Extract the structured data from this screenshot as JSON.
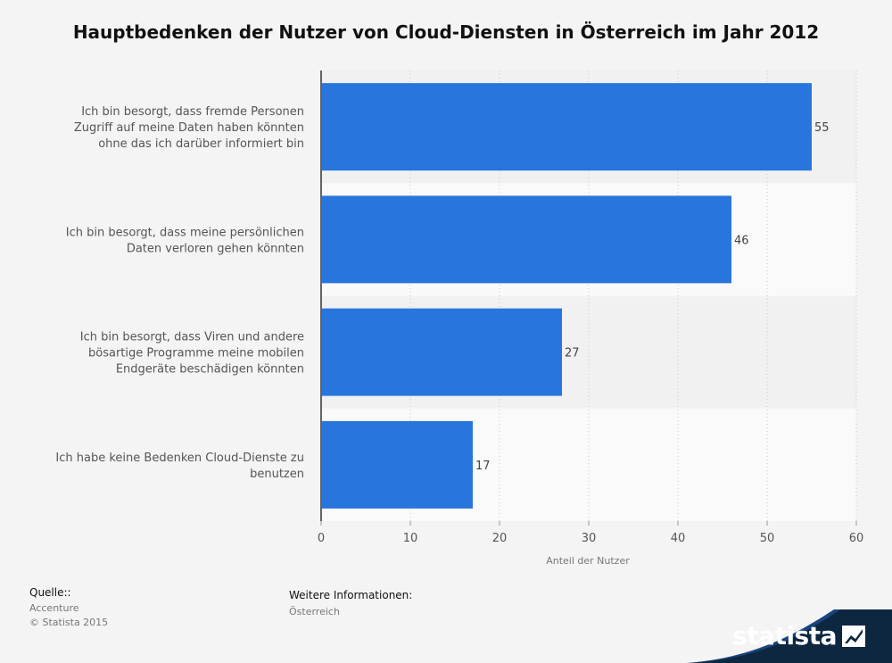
{
  "chart_data": {
    "type": "bar",
    "orientation": "horizontal",
    "title": "Hauptbedenken der Nutzer von Cloud-Diensten in Österreich im Jahr 2012",
    "categories": [
      [
        "Ich bin besorgt, dass fremde Personen",
        "Zugriff auf meine Daten haben könnten",
        "ohne das ich darüber informiert bin"
      ],
      [
        "Ich bin besorgt, dass meine persönlichen",
        "Daten verloren gehen könnten"
      ],
      [
        "Ich bin besorgt, dass Viren und andere",
        "bösartige Programme meine mobilen",
        "Endgeräte beschädigen könnten"
      ],
      [
        "Ich habe keine Bedenken Cloud-Dienste zu",
        "benutzen"
      ]
    ],
    "values": [
      55,
      46,
      27,
      17
    ],
    "xlabel": "Anteil der Nutzer",
    "xlim": [
      0,
      60
    ],
    "xticks": [
      0,
      10,
      20,
      30,
      40,
      50,
      60
    ],
    "bar_color": "#2876dd",
    "grid": true
  },
  "footer": {
    "source_label": "Quelle::",
    "source_name": "Accenture",
    "copyright": "© Statista 2015",
    "info_label": "Weitere Informationen:",
    "info_value": "Österreich"
  },
  "brand": {
    "name": "statista",
    "icon": "statista-logo-icon",
    "bg_color": "#0e2740"
  }
}
